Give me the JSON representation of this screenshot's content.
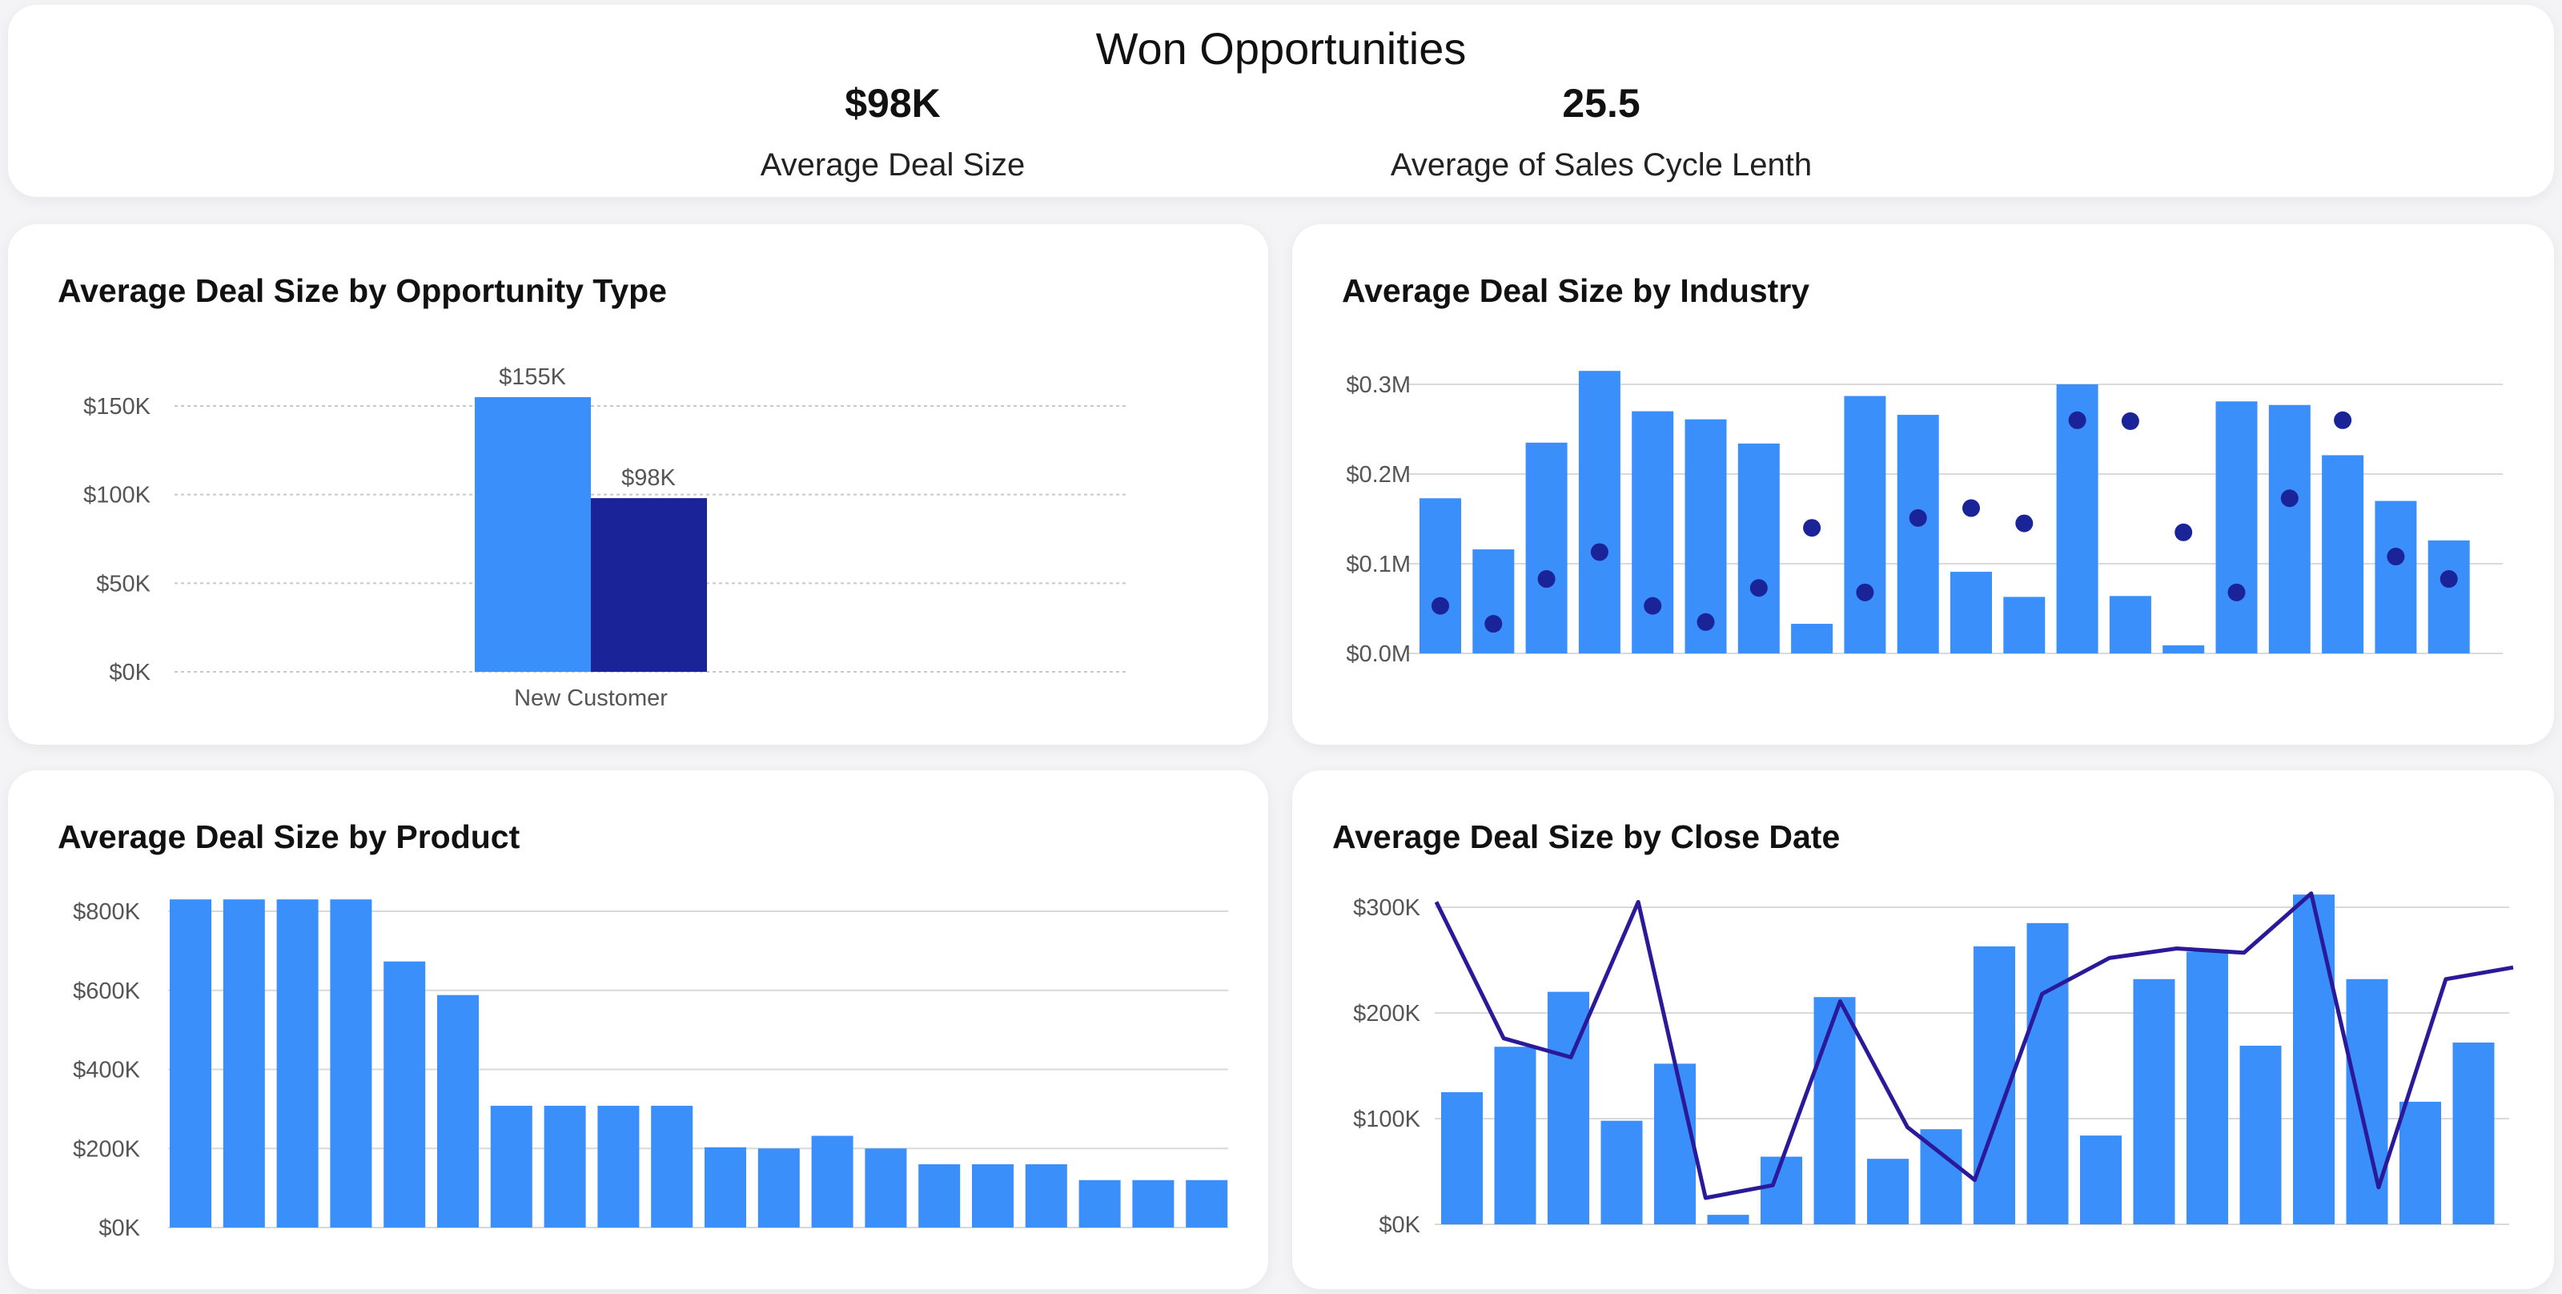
{
  "header": {
    "title": "Won Opportunities",
    "kpis": [
      {
        "value": "$98K",
        "label": "Average Deal Size"
      },
      {
        "value": "25.5",
        "label": "Average of Sales Cycle Lenth"
      }
    ]
  },
  "colors": {
    "bar": "#3b8ffa",
    "dark": "#1b2399",
    "line": "#2a1a9a",
    "grid": "#d9d9d9",
    "axis_text": "#555555"
  },
  "chart_data": [
    {
      "type": "bar",
      "title": "Average Deal Size by Opportunity Type",
      "categories": [
        "New Customer"
      ],
      "series": [
        {
          "values": [
            155000
          ],
          "labels": [
            "$155K"
          ]
        },
        {
          "values": [
            98000
          ],
          "labels": [
            "$98K"
          ]
        }
      ],
      "ylim": [
        0,
        150000
      ],
      "yticks": [
        0,
        50000,
        100000,
        150000
      ],
      "ytick_labels": [
        "$0K",
        "$50K",
        "$100K",
        "$150K"
      ],
      "grid": true
    },
    {
      "type": "bar",
      "title": "Average Deal Size by Industry",
      "series": [
        {
          "values": [
            0.173,
            0.116,
            0.235,
            0.315,
            0.27,
            0.261,
            0.234,
            0.033,
            0.287,
            0.266,
            0.091,
            0.063,
            0.3,
            0.064,
            0.009,
            0.281,
            0.277,
            0.221,
            0.17,
            0.126
          ]
        },
        {
          "values": [
            0.053,
            0.033,
            0.083,
            0.113,
            0.053,
            0.035,
            0.073,
            0.14,
            0.068,
            0.151,
            0.162,
            0.145,
            0.26,
            0.259,
            0.135,
            0.068,
            0.173,
            0.26,
            0.108,
            0.083
          ]
        }
      ],
      "ylim": [
        0,
        0.3
      ],
      "yticks": [
        0,
        0.1,
        0.2,
        0.3
      ],
      "ytick_labels": [
        "$0.0M",
        "$0.1M",
        "$0.2M",
        "$0.3M"
      ],
      "grid": true
    },
    {
      "type": "bar",
      "title": "Average Deal Size by Product",
      "series": [
        {
          "values": [
            830000,
            830000,
            830000,
            830000,
            673000,
            588000,
            308000,
            308000,
            308000,
            308000,
            203000,
            200000,
            232000,
            200000,
            160000,
            160000,
            160000,
            120000,
            120000,
            120000
          ]
        }
      ],
      "ylim": [
        0,
        800000
      ],
      "yticks": [
        0,
        200000,
        400000,
        600000,
        800000
      ],
      "ytick_labels": [
        "$0K",
        "$200K",
        "$400K",
        "$600K",
        "$800K"
      ],
      "grid": true
    },
    {
      "type": "bar",
      "title": "Average Deal Size by Close Date",
      "series": [
        {
          "values": [
            125000,
            168000,
            220000,
            98000,
            152000,
            9000,
            64000,
            215000,
            62000,
            90000,
            263000,
            285000,
            84000,
            232000,
            258000,
            169000,
            312000,
            232000,
            116000,
            172000
          ]
        },
        {
          "values": [
            305000,
            176000,
            158000,
            305000,
            25000,
            37000,
            211000,
            92000,
            42000,
            218000,
            252000,
            261000,
            257000,
            313000,
            35000,
            232000,
            243000
          ]
        }
      ],
      "ylim": [
        0,
        300000
      ],
      "yticks": [
        0,
        100000,
        200000,
        300000
      ],
      "ytick_labels": [
        "$0K",
        "$100K",
        "$200K",
        "$300K"
      ],
      "grid": true
    }
  ]
}
